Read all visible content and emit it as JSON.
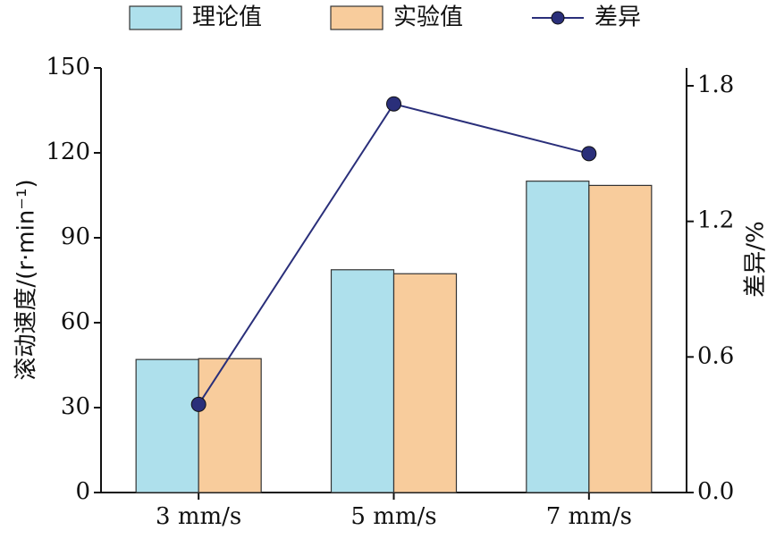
{
  "chart_data": {
    "type": "bar",
    "categories": [
      "3 mm/s",
      "5 mm/s",
      "7 mm/s"
    ],
    "series": [
      {
        "name": "理论值",
        "color": "#aee0ec",
        "values": [
          47,
          78.7,
          110
        ]
      },
      {
        "name": "实验值",
        "color": "#f8cc9c",
        "values": [
          47.3,
          77.3,
          108.5
        ]
      },
      {
        "name": "差异",
        "color": "#2a2f7a",
        "type": "line",
        "axis": "y2",
        "values": [
          0.39,
          1.72,
          1.5
        ]
      }
    ],
    "ylabel": "滚动速度/(r·min⁻¹)",
    "y2label": "差异/%",
    "ylim": [
      0,
      150
    ],
    "yticks": [
      0,
      30,
      60,
      90,
      120,
      150
    ],
    "y2lim": [
      0,
      1.8
    ],
    "y2ticks": [
      {
        "value": 0,
        "label": "0.0"
      },
      {
        "value": 0.6,
        "label": "0.6"
      },
      {
        "value": 1.2,
        "label": "1.2"
      },
      {
        "value": 1.8,
        "label": "1.8"
      }
    ]
  }
}
